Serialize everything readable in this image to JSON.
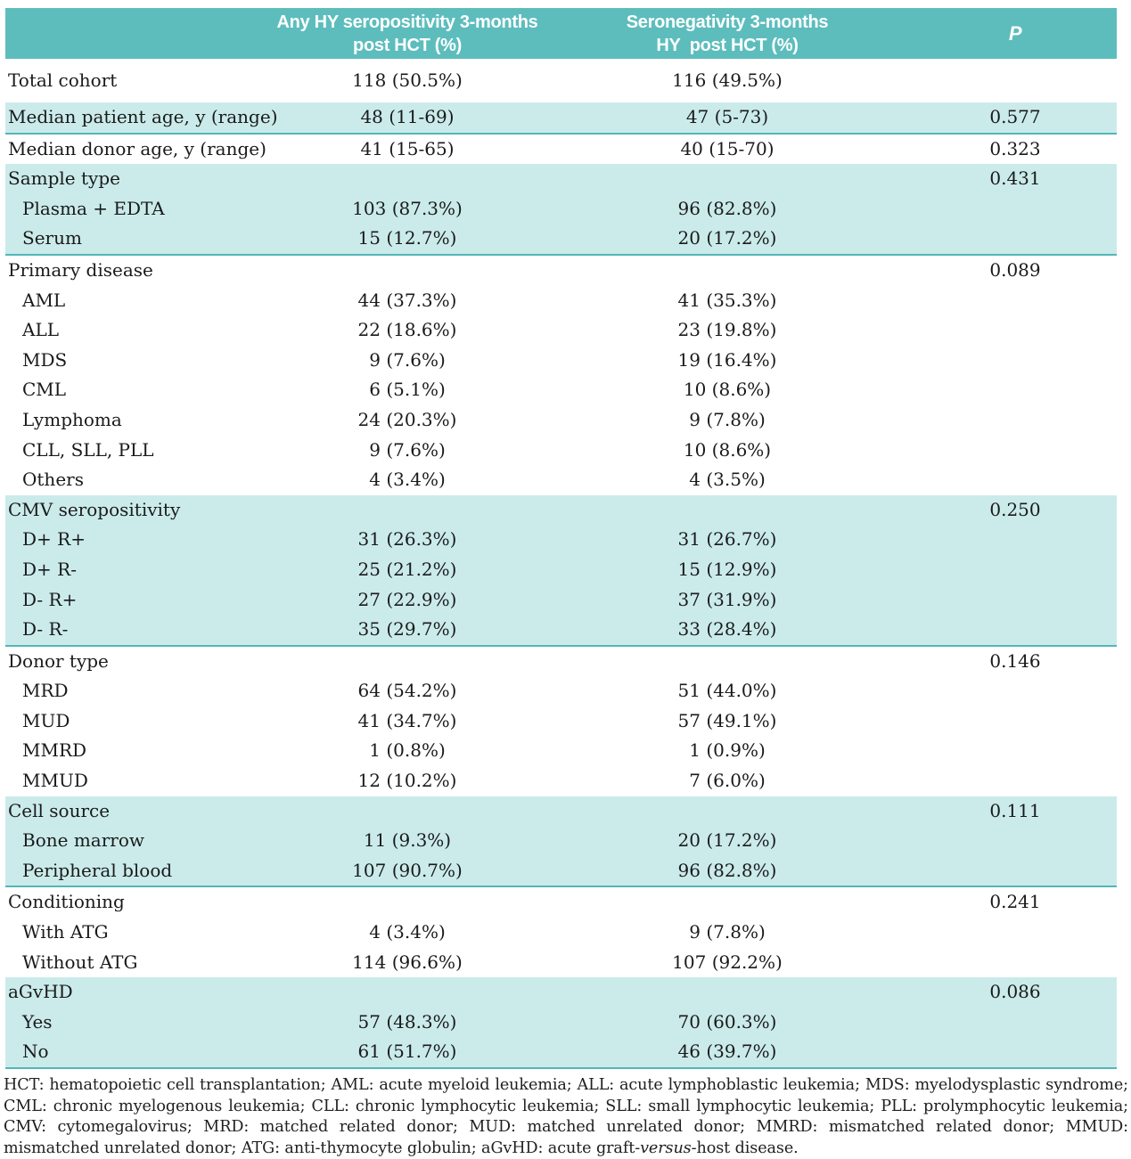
{
  "colors": {
    "header_teal": "#5dbdbd",
    "shaded_row_teal": "#cbebeb",
    "rule_teal": "#53b6b6",
    "text": "#1a1a1a",
    "header_text": "#ffffff"
  },
  "table": {
    "header": {
      "col1": "",
      "col2_line1": "Any HY seropositivity 3-months",
      "col2_line2": "post HCT (%)",
      "col3_line1": "Seronegativity 3-months",
      "col3_line2": "HY  post HCT (%)",
      "p_label": "P"
    },
    "rows": [
      {
        "label": "Total cohort",
        "any_hy": "118 (50.5%)",
        "seroneg": "116 (49.5%)",
        "p": "",
        "indent": false,
        "shaded": false,
        "section_end": false
      },
      {
        "label": "Median patient age, y (range)",
        "any_hy": "48 (11-69)",
        "seroneg": "47 (5-73)",
        "p": "0.577",
        "indent": false,
        "shaded": true,
        "section_end": true
      },
      {
        "label": "Median donor age, y (range)",
        "any_hy": "41 (15-65)",
        "seroneg": "40 (15-70)",
        "p": "0.323",
        "indent": false,
        "shaded": false,
        "section_end": false
      },
      {
        "label": "Sample type",
        "any_hy": "",
        "seroneg": "",
        "p": "0.431",
        "indent": false,
        "shaded": true,
        "section_end": false
      },
      {
        "label": "Plasma + EDTA",
        "any_hy": "103 (87.3%)",
        "seroneg": "96 (82.8%)",
        "p": "",
        "indent": true,
        "shaded": true,
        "section_end": false
      },
      {
        "label": "Serum",
        "any_hy": "15 (12.7%)",
        "seroneg": "20 (17.2%)",
        "p": "",
        "indent": true,
        "shaded": true,
        "section_end": true
      },
      {
        "label": "Primary disease",
        "any_hy": "",
        "seroneg": "",
        "p": "0.089",
        "indent": false,
        "shaded": false,
        "section_end": false
      },
      {
        "label": "AML",
        "any_hy": "44 (37.3%)",
        "seroneg": "41 (35.3%)",
        "p": "",
        "indent": true,
        "shaded": false,
        "section_end": false
      },
      {
        "label": "ALL",
        "any_hy": "22 (18.6%)",
        "seroneg": "23 (19.8%)",
        "p": "",
        "indent": true,
        "shaded": false,
        "section_end": false
      },
      {
        "label": "MDS",
        "any_hy": "9 (7.6%)",
        "seroneg": "19 (16.4%)",
        "p": "",
        "indent": true,
        "shaded": false,
        "section_end": false
      },
      {
        "label": "CML",
        "any_hy": "6 (5.1%)",
        "seroneg": "10 (8.6%)",
        "p": "",
        "indent": true,
        "shaded": false,
        "section_end": false
      },
      {
        "label": "Lymphoma",
        "any_hy": "24 (20.3%)",
        "seroneg": "9 (7.8%)",
        "p": "",
        "indent": true,
        "shaded": false,
        "section_end": false
      },
      {
        "label": "CLL, SLL, PLL",
        "any_hy": "9 (7.6%)",
        "seroneg": "10 (8.6%)",
        "p": "",
        "indent": true,
        "shaded": false,
        "section_end": false
      },
      {
        "label": "Others",
        "any_hy": "4 (3.4%)",
        "seroneg": "4 (3.5%)",
        "p": "",
        "indent": true,
        "shaded": false,
        "section_end": false
      },
      {
        "label": "CMV seropositivity",
        "any_hy": "",
        "seroneg": "",
        "p": "0.250",
        "indent": false,
        "shaded": true,
        "section_end": false
      },
      {
        "label": "D+ R+",
        "any_hy": "31 (26.3%)",
        "seroneg": "31 (26.7%)",
        "p": "",
        "indent": true,
        "shaded": true,
        "section_end": false
      },
      {
        "label": "D+ R-",
        "any_hy": "25 (21.2%)",
        "seroneg": "15 (12.9%)",
        "p": "",
        "indent": true,
        "shaded": true,
        "section_end": false
      },
      {
        "label": "D- R+",
        "any_hy": "27 (22.9%)",
        "seroneg": "37 (31.9%)",
        "p": "",
        "indent": true,
        "shaded": true,
        "section_end": false
      },
      {
        "label": "D- R-",
        "any_hy": "35 (29.7%)",
        "seroneg": "33 (28.4%)",
        "p": "",
        "indent": true,
        "shaded": true,
        "section_end": true
      },
      {
        "label": "Donor type",
        "any_hy": "",
        "seroneg": "",
        "p": "0.146",
        "indent": false,
        "shaded": false,
        "section_end": false
      },
      {
        "label": "MRD",
        "any_hy": "64 (54.2%)",
        "seroneg": "51 (44.0%)",
        "p": "",
        "indent": true,
        "shaded": false,
        "section_end": false
      },
      {
        "label": "MUD",
        "any_hy": "41 (34.7%)",
        "seroneg": "57 (49.1%)",
        "p": "",
        "indent": true,
        "shaded": false,
        "section_end": false
      },
      {
        "label": "MMRD",
        "any_hy": "1 (0.8%)",
        "seroneg": "1 (0.9%)",
        "p": "",
        "indent": true,
        "shaded": false,
        "section_end": false
      },
      {
        "label": "MMUD",
        "any_hy": "12 (10.2%)",
        "seroneg": "7 (6.0%)",
        "p": "",
        "indent": true,
        "shaded": false,
        "section_end": false
      },
      {
        "label": "Cell source",
        "any_hy": "",
        "seroneg": "",
        "p": "0.111",
        "indent": false,
        "shaded": true,
        "section_end": false
      },
      {
        "label": "Bone marrow",
        "any_hy": "11 (9.3%)",
        "seroneg": "20 (17.2%)",
        "p": "",
        "indent": true,
        "shaded": true,
        "section_end": false
      },
      {
        "label": "Peripheral blood",
        "any_hy": "107 (90.7%)",
        "seroneg": "96 (82.8%)",
        "p": "",
        "indent": true,
        "shaded": true,
        "section_end": true
      },
      {
        "label": "Conditioning",
        "any_hy": "",
        "seroneg": "",
        "p": "0.241",
        "indent": false,
        "shaded": false,
        "section_end": false
      },
      {
        "label": "With ATG",
        "any_hy": "4 (3.4%)",
        "seroneg": "9 (7.8%)",
        "p": "",
        "indent": true,
        "shaded": false,
        "section_end": false
      },
      {
        "label": "Without ATG",
        "any_hy": "114 (96.6%)",
        "seroneg": "107 (92.2%)",
        "p": "",
        "indent": true,
        "shaded": false,
        "section_end": false
      },
      {
        "label": "aGvHD",
        "any_hy": "",
        "seroneg": "",
        "p": "0.086",
        "indent": false,
        "shaded": true,
        "section_end": false
      },
      {
        "label": "Yes",
        "any_hy": "57 (48.3%)",
        "seroneg": "70 (60.3%)",
        "p": "",
        "indent": true,
        "shaded": true,
        "section_end": false
      },
      {
        "label": "No",
        "any_hy": "61 (51.7%)",
        "seroneg": "46 (39.7%)",
        "p": "",
        "indent": true,
        "shaded": true,
        "section_end": true
      }
    ]
  },
  "footnote": {
    "text_before": "HCT: hematopoietic cell transplantation; AML: acute myeloid leukemia; ALL: acute lymphoblastic leukemia; MDS: myelodysplastic syndrome; CML: chronic myelogenous leukemia; CLL: chronic lymphocytic leukemia; SLL: small lymphocytic leukemia; PLL: prolymphocytic leukemia; CMV: cytomegalovirus; MRD: matched related donor; MUD: matched unrelated donor; MMRD: mismatched related donor; MMUD: mismatched unrelated donor; ATG: anti-thymocyte globulin; aGvHD: acute graft-",
    "italic": "versus",
    "text_after": "-host disease."
  }
}
